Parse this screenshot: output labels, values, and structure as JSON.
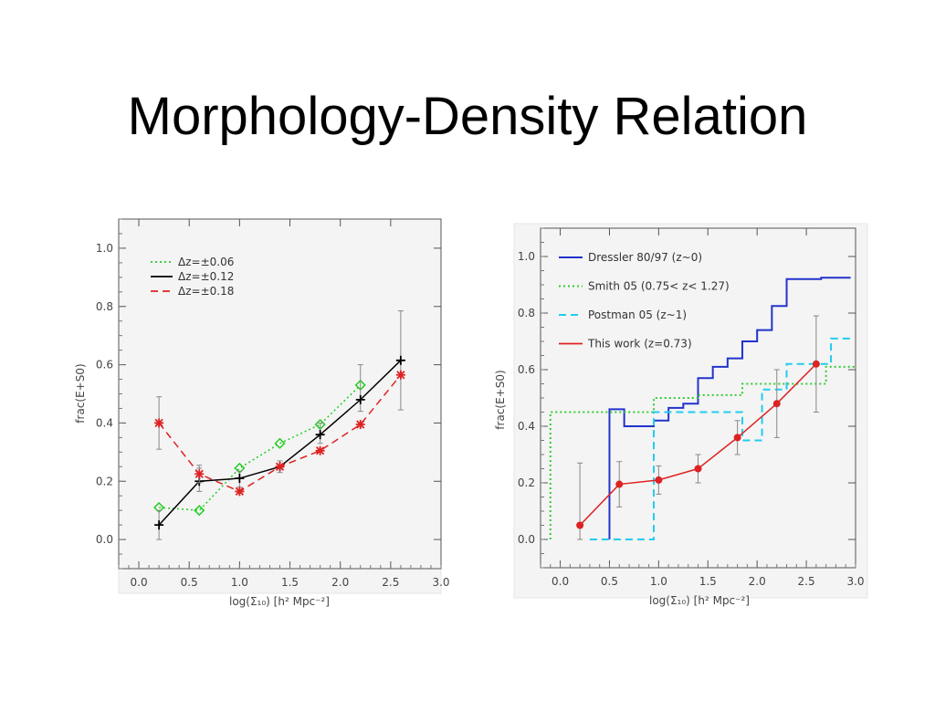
{
  "slide": {
    "title": "Morphology-Density Relation"
  },
  "chart_data": [
    {
      "type": "line",
      "xlabel": "log(Σ₁₀) [h² Mpc⁻²]",
      "ylabel": "frac(E+S0)",
      "xlim": [
        -0.2,
        3.0
      ],
      "ylim": [
        -0.1,
        1.1
      ],
      "xticks": [
        0.0,
        0.5,
        1.0,
        1.5,
        2.0,
        2.5,
        3.0
      ],
      "yticks": [
        0.0,
        0.2,
        0.4,
        0.6,
        0.8,
        1.0
      ],
      "xtick_labels": [
        "0.0",
        "0.5",
        "1.0",
        "1.5",
        "2.0",
        "2.5",
        "3.0"
      ],
      "ytick_labels": [
        "0.0",
        "0.2",
        "0.4",
        "0.6",
        "0.8",
        "1.0"
      ],
      "legend_position": "top-left",
      "series": [
        {
          "name": "Δz=±0.06",
          "color": "#22cc22",
          "dash": "dotted",
          "marker": "diamond",
          "x": [
            0.2,
            0.6,
            1.0,
            1.4,
            1.8,
            2.2
          ],
          "y": [
            0.11,
            0.1,
            0.245,
            0.33,
            0.395,
            0.53
          ]
        },
        {
          "name": "Δz=±0.12",
          "color": "#000000",
          "dash": "solid",
          "marker": "plus",
          "x": [
            0.2,
            0.6,
            1.0,
            1.4,
            1.8,
            2.2,
            2.6
          ],
          "y": [
            0.05,
            0.2,
            0.21,
            0.25,
            0.36,
            0.48,
            0.615
          ],
          "err_low": [
            0.05,
            0.035,
            0.03,
            0.02,
            0.03,
            0.04,
            0.17
          ],
          "err_high": [
            0.05,
            0.045,
            0.025,
            0.02,
            0.04,
            0.12,
            0.17
          ]
        },
        {
          "name": "Δz=±0.18",
          "color": "#dd2222",
          "dash": "dashed",
          "marker": "star",
          "x": [
            0.2,
            0.6,
            1.0,
            1.4,
            1.8,
            2.2,
            2.6
          ],
          "y": [
            0.4,
            0.225,
            0.165,
            0.25,
            0.305,
            0.395,
            0.565
          ],
          "err_low": [
            0.09,
            0.03,
            0.0,
            0.0,
            0.0,
            0.0,
            0.0
          ],
          "err_high": [
            0.09,
            0.03,
            0.0,
            0.0,
            0.0,
            0.0,
            0.0
          ]
        }
      ]
    },
    {
      "type": "line",
      "xlabel": "log(Σ₁₀) [h² Mpc⁻²]",
      "ylabel": "frac(E+S0)",
      "xlim": [
        -0.2,
        3.0
      ],
      "ylim": [
        -0.1,
        1.1
      ],
      "xticks": [
        0.0,
        0.5,
        1.0,
        1.5,
        2.0,
        2.5,
        3.0
      ],
      "yticks": [
        0.0,
        0.2,
        0.4,
        0.6,
        0.8,
        1.0
      ],
      "xtick_labels": [
        "0.0",
        "0.5",
        "1.0",
        "1.5",
        "2.0",
        "2.5",
        "3.0"
      ],
      "ytick_labels": [
        "0.0",
        "0.2",
        "0.4",
        "0.6",
        "0.8",
        "1.0"
      ],
      "legend_position": "top-left",
      "series": [
        {
          "name": "Dressler 80/97  (z~0)",
          "color": "#2233cc",
          "dash": "solid",
          "step": true,
          "x": [
            0.5,
            0.5,
            0.55,
            0.65,
            0.8,
            0.95,
            1.1,
            1.25,
            1.4,
            1.55,
            1.7,
            1.85,
            2.0,
            2.15,
            2.3,
            2.5,
            2.65,
            2.8,
            2.95
          ],
          "y": [
            0.0,
            0.46,
            0.46,
            0.4,
            0.4,
            0.42,
            0.465,
            0.48,
            0.57,
            0.61,
            0.64,
            0.7,
            0.74,
            0.825,
            0.92,
            0.92,
            0.925,
            0.925,
            0.925
          ]
        },
        {
          "name": "Smith 05  (0.75< z< 1.27)",
          "color": "#33cc33",
          "dash": "dotted",
          "step": true,
          "x": [
            -0.1,
            -0.1,
            0.5,
            0.95,
            1.4,
            1.85,
            2.4,
            2.7,
            3.0
          ],
          "y": [
            0.0,
            0.45,
            0.45,
            0.5,
            0.51,
            0.55,
            0.55,
            0.61,
            0.61
          ]
        },
        {
          "name": "Postman 05  (z~1)",
          "color": "#22ccee",
          "dash": "dashed",
          "step": true,
          "x": [
            0.3,
            0.5,
            0.95,
            0.95,
            1.4,
            1.85,
            2.05,
            2.3,
            2.55,
            2.75,
            2.95
          ],
          "y": [
            0.0,
            0.0,
            0.0,
            0.45,
            0.45,
            0.35,
            0.53,
            0.62,
            0.62,
            0.71,
            0.71
          ]
        },
        {
          "name": "This work  (z=0.73)",
          "color": "#dd2222",
          "dash": "solid",
          "marker": "circle",
          "x": [
            0.2,
            0.6,
            1.0,
            1.4,
            1.8,
            2.2,
            2.6
          ],
          "y": [
            0.05,
            0.195,
            0.21,
            0.25,
            0.36,
            0.48,
            0.62
          ],
          "err_low": [
            0.05,
            0.08,
            0.05,
            0.05,
            0.06,
            0.12,
            0.17
          ],
          "err_high": [
            0.22,
            0.08,
            0.05,
            0.05,
            0.06,
            0.12,
            0.17
          ]
        }
      ]
    }
  ]
}
